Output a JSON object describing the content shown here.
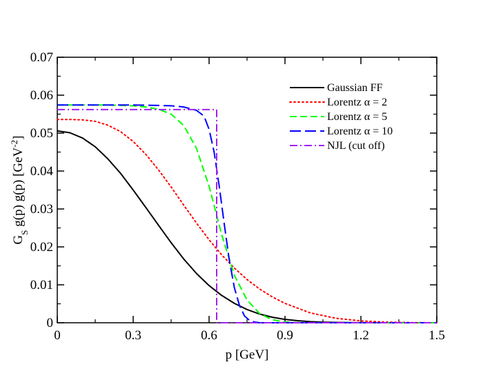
{
  "chart_data": {
    "type": "line",
    "title": "",
    "xlabel": "p [GeV]",
    "ylabel": {
      "main": "G",
      "sub": "S",
      "rest": " g(p) g(p) [GeV",
      "exp": "-2",
      "close": "]"
    },
    "xlim": [
      0,
      1.5
    ],
    "ylim": [
      0,
      0.07
    ],
    "x_ticks": [
      "0",
      "0.3",
      "0.6",
      "0.9",
      "1.2",
      "1.5"
    ],
    "y_ticks": [
      "0",
      "0.01",
      "0.02",
      "0.03",
      "0.04",
      "0.05",
      "0.06",
      "0.07"
    ],
    "grid": false,
    "legend_position": "top-right",
    "series": [
      {
        "name": "Gaussian FF",
        "color": "#000000",
        "style": "solid",
        "x": [
          0,
          0.05,
          0.1,
          0.15,
          0.2,
          0.25,
          0.3,
          0.35,
          0.4,
          0.45,
          0.5,
          0.55,
          0.6,
          0.65,
          0.7,
          0.75,
          0.8,
          0.85,
          0.9,
          0.95,
          1.0,
          1.05,
          1.1,
          1.2,
          1.3,
          1.5
        ],
        "y": [
          0.0506,
          0.0501,
          0.0487,
          0.0464,
          0.0432,
          0.0394,
          0.035,
          0.0304,
          0.0257,
          0.0211,
          0.0168,
          0.013,
          0.0098,
          0.0072,
          0.0051,
          0.0035,
          0.0023,
          0.00145,
          0.0009,
          0.00054,
          0.0003,
          0.00017,
          9e-05,
          2e-05,
          0.0,
          0.0
        ]
      },
      {
        "name": "Lorentz α = 2",
        "color": "#ff0000",
        "style": "dotted",
        "x": [
          0,
          0.05,
          0.1,
          0.15,
          0.2,
          0.25,
          0.3,
          0.35,
          0.4,
          0.45,
          0.5,
          0.55,
          0.6,
          0.65,
          0.7,
          0.75,
          0.8,
          0.85,
          0.9,
          1.0,
          1.1,
          1.2,
          1.3,
          1.4,
          1.5
        ],
        "y": [
          0.0536,
          0.0536,
          0.0535,
          0.0531,
          0.0521,
          0.0504,
          0.0478,
          0.0444,
          0.0403,
          0.0358,
          0.031,
          0.0263,
          0.0219,
          0.0179,
          0.0144,
          0.0114,
          0.0089,
          0.0068,
          0.0051,
          0.0026,
          0.0012,
          0.0005,
          0.00018,
          5e-05,
          1e-05
        ]
      },
      {
        "name": "Lorentz α = 5",
        "color": "#00ff00",
        "style": "dashed",
        "x": [
          0,
          0.1,
          0.2,
          0.3,
          0.35,
          0.4,
          0.45,
          0.5,
          0.55,
          0.6,
          0.65,
          0.7,
          0.75,
          0.8,
          0.85,
          0.9,
          0.95,
          1.0,
          1.5
        ],
        "y": [
          0.0574,
          0.0574,
          0.0574,
          0.0572,
          0.0569,
          0.0563,
          0.055,
          0.052,
          0.046,
          0.036,
          0.0232,
          0.0125,
          0.006,
          0.0024,
          0.0008,
          0.0002,
          5e-05,
          0.0,
          0.0
        ]
      },
      {
        "name": "Lorentz α = 10",
        "color": "#0000ff",
        "style": "longdash",
        "x": [
          0,
          0.1,
          0.2,
          0.3,
          0.4,
          0.45,
          0.5,
          0.55,
          0.58,
          0.6,
          0.62,
          0.64,
          0.66,
          0.68,
          0.7,
          0.72,
          0.74,
          0.76,
          0.78,
          0.8,
          1.5
        ],
        "y": [
          0.0574,
          0.0574,
          0.0574,
          0.0574,
          0.0573,
          0.0572,
          0.0569,
          0.056,
          0.0545,
          0.051,
          0.045,
          0.036,
          0.026,
          0.0165,
          0.0092,
          0.0046,
          0.0018,
          0.0006,
          0.0002,
          0.0,
          0.0
        ]
      },
      {
        "name": "NJL (cut off)",
        "color": "#a020f0",
        "style": "dashdot",
        "x": [
          0,
          0.63,
          0.63,
          1.5
        ],
        "y": [
          0.0562,
          0.0562,
          0.0,
          0.0
        ]
      }
    ]
  }
}
